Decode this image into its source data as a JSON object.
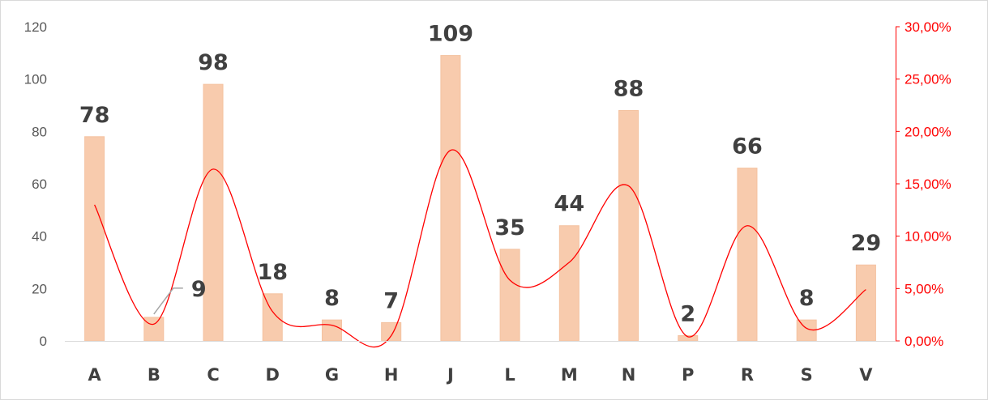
{
  "chart_data": {
    "type": "bar",
    "categories": [
      "A",
      "B",
      "C",
      "D",
      "G",
      "H",
      "J",
      "L",
      "M",
      "N",
      "P",
      "R",
      "S",
      "V"
    ],
    "series": [
      {
        "type": "bar",
        "values": [
          78,
          9,
          98,
          18,
          8,
          7,
          109,
          35,
          44,
          88,
          2,
          66,
          8,
          29
        ],
        "color": "#f8cbad",
        "axis": "left",
        "data_labels": true
      },
      {
        "type": "line",
        "smooth": true,
        "values": [
          0.13,
          0.016,
          0.164,
          0.028,
          0.015,
          0.005,
          0.182,
          0.058,
          0.075,
          0.148,
          0.004,
          0.11,
          0.012,
          0.049
        ],
        "color": "#ff0000",
        "axis": "right"
      }
    ],
    "y_left": {
      "min": 0,
      "max": 120,
      "ticks": [
        "0",
        "20",
        "40",
        "60",
        "80",
        "100",
        "120"
      ]
    },
    "y_right": {
      "min": 0,
      "max": 0.3,
      "ticks": [
        "0,00%",
        "5,00%",
        "10,00%",
        "15,00%",
        "20,00%",
        "25,00%",
        "30,00%"
      ],
      "color": "#ff0000"
    },
    "grid": false,
    "legend": "none"
  }
}
